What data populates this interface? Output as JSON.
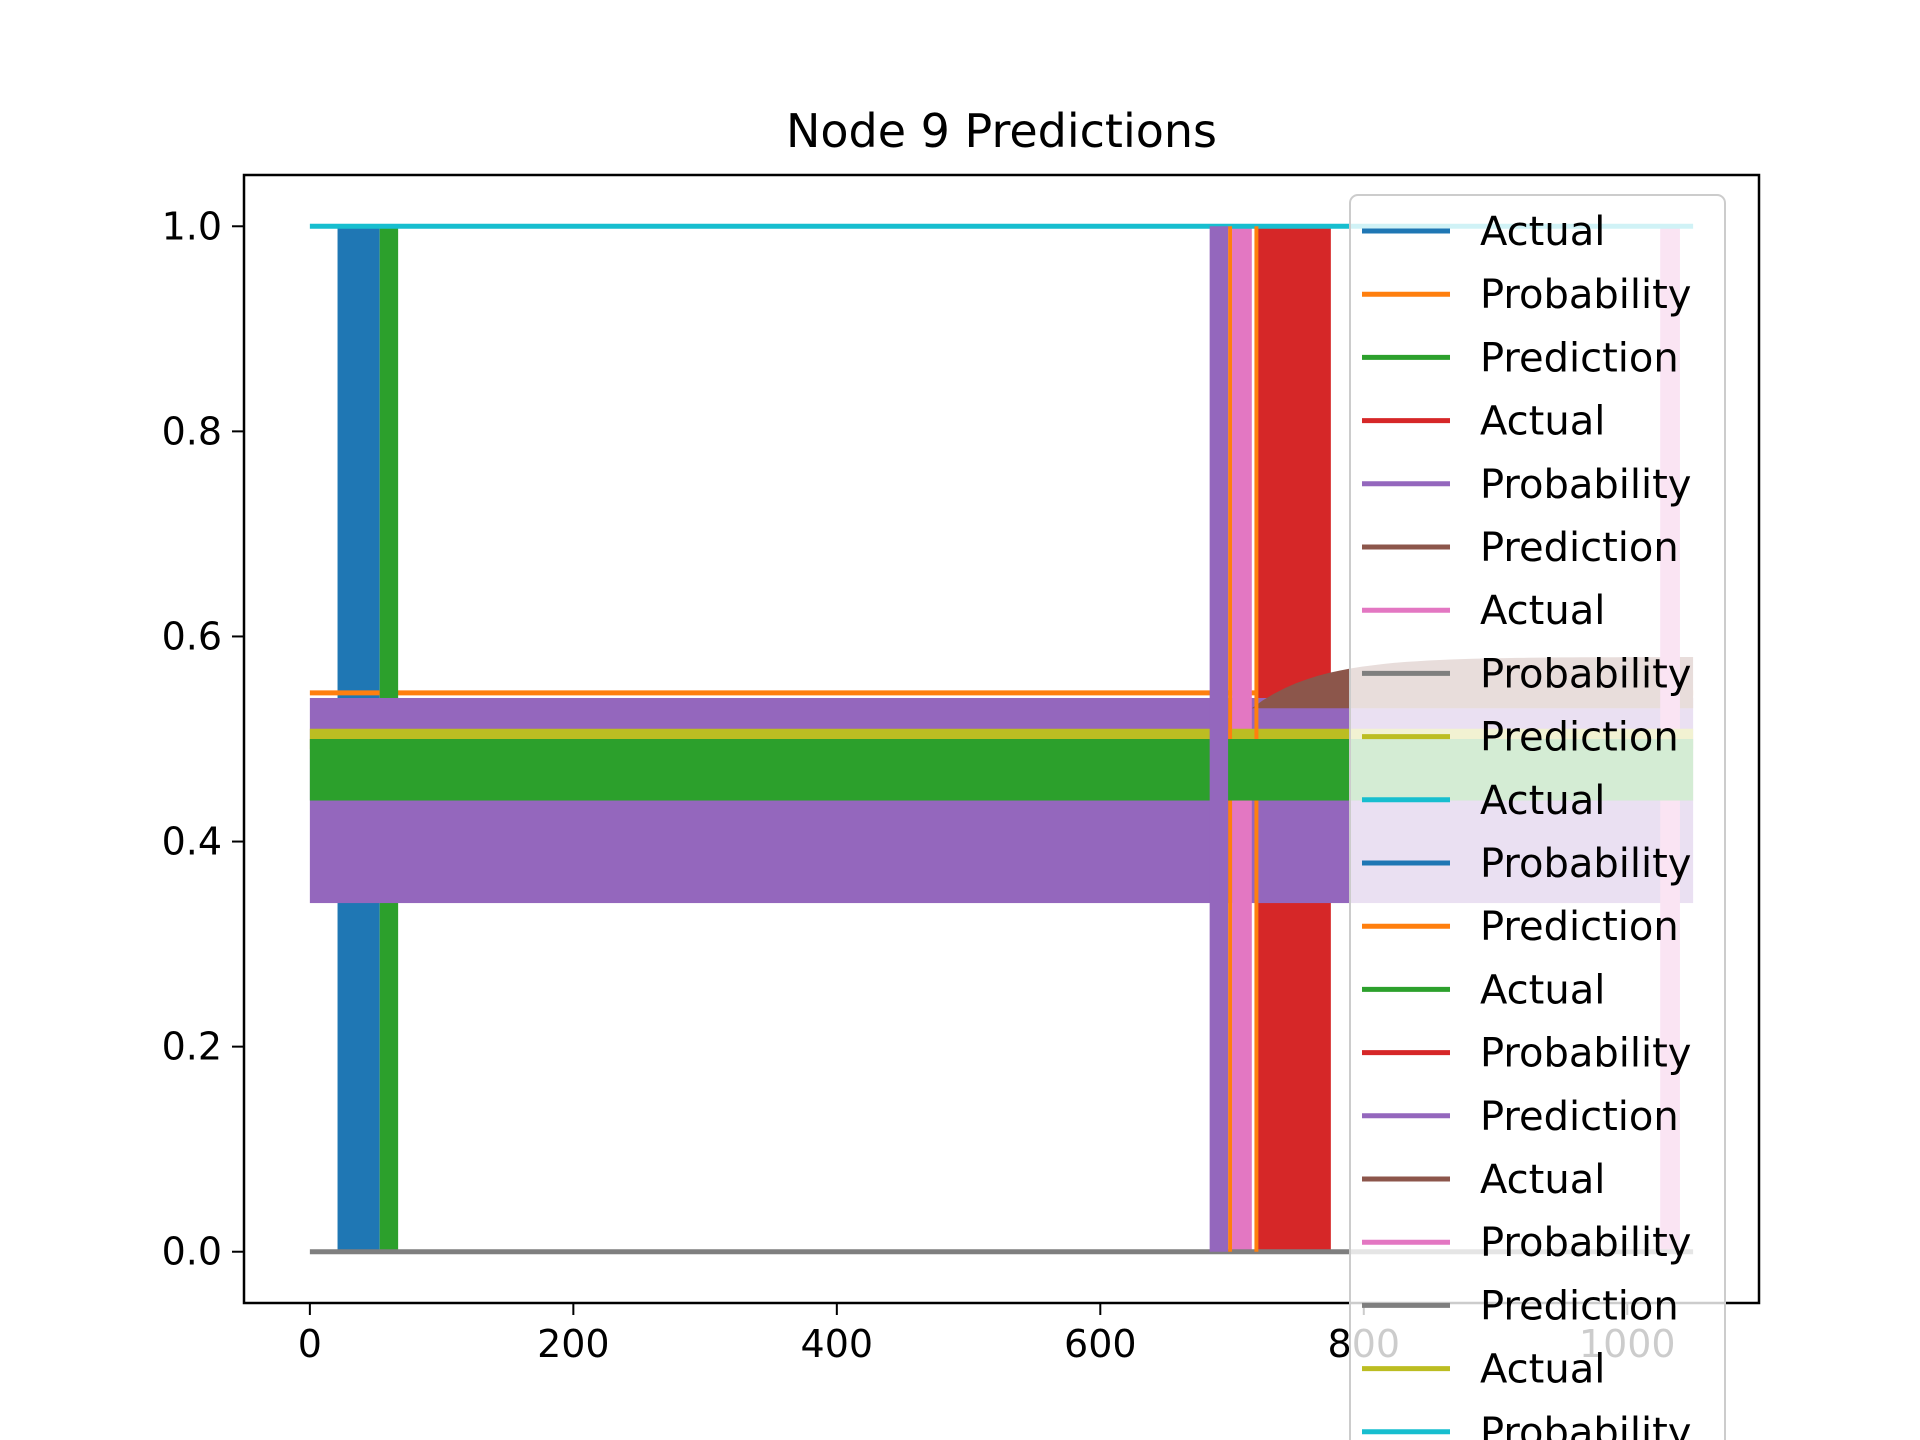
{
  "chart_data": {
    "type": "line",
    "title": "Node 9 Predictions",
    "xlabel": "",
    "ylabel": "",
    "xlim": [
      -50,
      1100
    ],
    "ylim": [
      -0.05,
      1.05
    ],
    "x_ticks": [
      0,
      200,
      400,
      600,
      800,
      1000
    ],
    "x_tick_labels": [
      "0",
      "200",
      "400",
      "600",
      "800",
      "1000"
    ],
    "y_ticks": [
      0.0,
      0.2,
      0.4,
      0.6,
      0.8,
      1.0
    ],
    "y_tick_labels": [
      "0.0",
      "0.2",
      "0.4",
      "0.6",
      "0.8",
      "1.0"
    ],
    "grid": false,
    "legend_position": "upper-right",
    "x_range": [
      0,
      1050
    ],
    "series": [
      {
        "name": "Actual",
        "color": "#1f77b4",
        "kind": "binary",
        "values_low": 0.0,
        "values_high": 1.0,
        "high_ranges": [
          [
            21,
            53
          ]
        ]
      },
      {
        "name": "Probability",
        "color": "#ff7f0e",
        "kind": "flat",
        "value": 0.545,
        "start_value": 0.55
      },
      {
        "name": "Prediction",
        "color": "#2ca02c",
        "kind": "binary",
        "values_low": 0.0,
        "values_high": 1.0,
        "high_ranges": [
          [
            53,
            67
          ]
        ]
      },
      {
        "name": "Actual",
        "color": "#d62728",
        "kind": "binary",
        "values_low": 0.0,
        "values_high": 1.0,
        "high_ranges": [
          [
            718,
            775
          ]
        ]
      },
      {
        "name": "Probability",
        "color": "#9467bd",
        "kind": "band",
        "band_low": 0.34,
        "band_high": 0.54
      },
      {
        "name": "Prediction",
        "color": "#8c564b",
        "kind": "rising",
        "start_x": 715,
        "start_value": 0.53,
        "end_value": 0.58
      },
      {
        "name": "Actual",
        "color": "#e377c2",
        "kind": "binary",
        "values_low": 0.0,
        "values_high": 1.0,
        "high_ranges": [
          [
            700,
            715
          ],
          [
            1025,
            1040
          ]
        ]
      },
      {
        "name": "Probability",
        "color": "#7f7f7f",
        "kind": "flat",
        "value": 0.0
      },
      {
        "name": "Prediction",
        "color": "#bcbd22",
        "kind": "band",
        "band_low": 0.49,
        "band_high": 0.51
      },
      {
        "name": "Actual",
        "color": "#17becf",
        "kind": "flat",
        "value": 1.0
      },
      {
        "name": "Probability",
        "color": "#1f77b4",
        "kind": "none"
      },
      {
        "name": "Prediction",
        "color": "#ff7f0e",
        "kind": "binary",
        "values_low": 0.0,
        "values_high": 1.0,
        "high_ranges": [
          [
            697,
            700
          ],
          [
            717,
            720
          ]
        ]
      },
      {
        "name": "Actual",
        "color": "#2ca02c",
        "kind": "band",
        "band_low": 0.44,
        "band_high": 0.5
      },
      {
        "name": "Probability",
        "color": "#d62728",
        "kind": "none"
      },
      {
        "name": "Prediction",
        "color": "#9467bd",
        "kind": "binary",
        "values_low": 0.0,
        "values_high": 1.0,
        "high_ranges": [
          [
            683,
            697
          ]
        ]
      },
      {
        "name": "Actual",
        "color": "#8c564b",
        "kind": "none"
      },
      {
        "name": "Probability",
        "color": "#e377c2",
        "kind": "none"
      },
      {
        "name": "Prediction",
        "color": "#7f7f7f",
        "kind": "none"
      },
      {
        "name": "Actual",
        "color": "#bcbd22",
        "kind": "none"
      },
      {
        "name": "Probability",
        "color": "#17becf",
        "kind": "none"
      }
    ]
  }
}
